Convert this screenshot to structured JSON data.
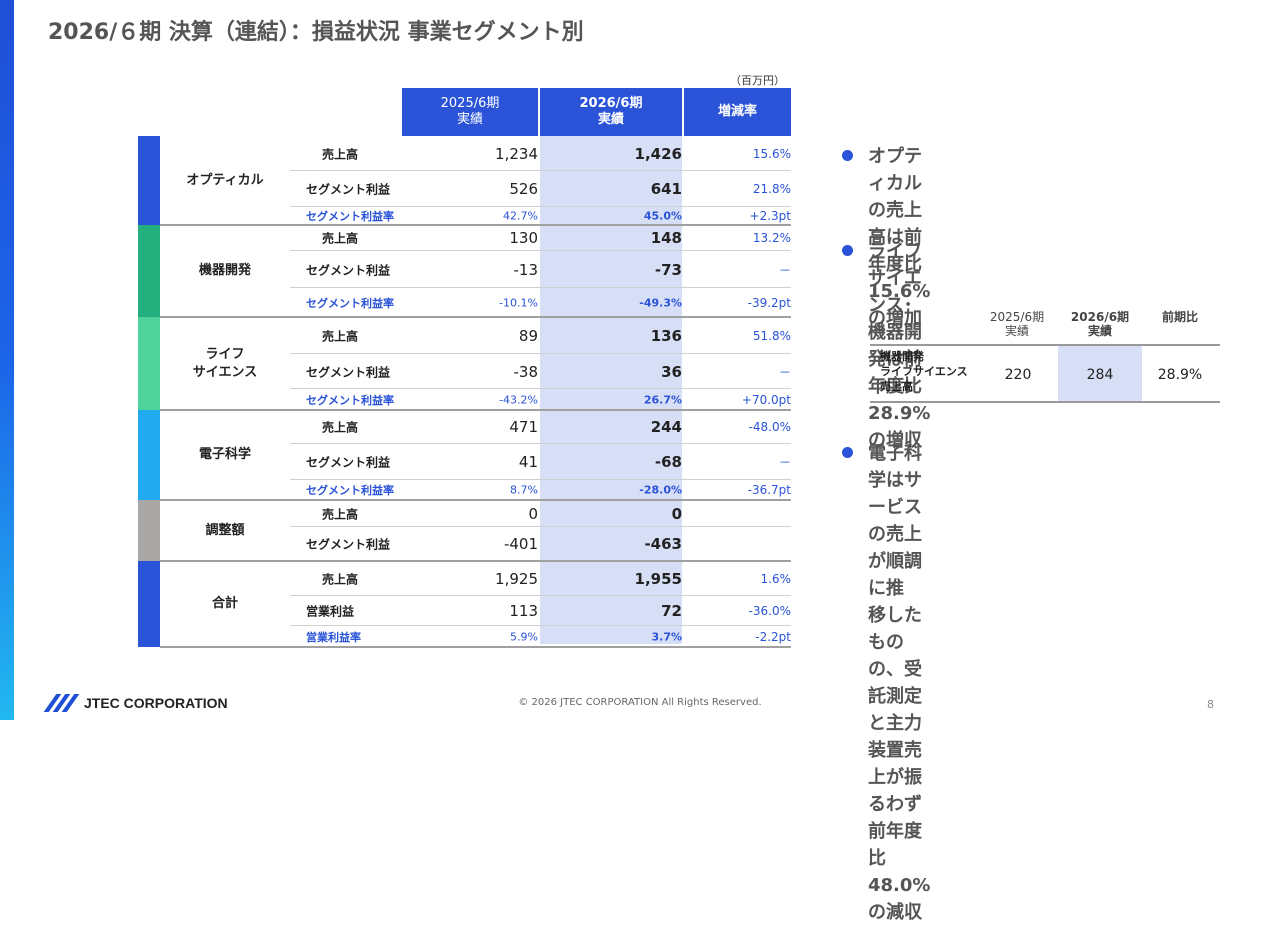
{
  "title": "2026/６期 決算（連結）：損益状況 事業セグメント別",
  "unit": "（百万円）",
  "table": {
    "header": {
      "prev": [
        "2025/6期",
        "実績"
      ],
      "cur": [
        "2026/6期",
        "実績"
      ],
      "change": "増減率"
    },
    "segments": [
      {
        "name": "オプティカル",
        "rows": [
          {
            "label": "売上高",
            "prev": "1,234",
            "cur": "1,426",
            "change": "15.6%"
          },
          {
            "label": "セグメント利益",
            "prev": "526",
            "cur": "641",
            "change": "21.8%"
          },
          {
            "label": "セグメント利益率",
            "prev": "42.7%",
            "cur": "45.0%",
            "change": "+2.3pt"
          }
        ]
      },
      {
        "name": "機器開発",
        "rows": [
          {
            "label": "売上高",
            "prev": "130",
            "cur": "148",
            "change": "13.2%"
          },
          {
            "label": "セグメント利益",
            "prev": "-13",
            "cur": "-73",
            "change": "－"
          },
          {
            "label": "セグメント利益率",
            "prev": "-10.1%",
            "cur": "-49.3%",
            "change": "-39.2pt"
          }
        ]
      },
      {
        "name": "ライフ\nサイエンス",
        "rows": [
          {
            "label": "売上高",
            "prev": "89",
            "cur": "136",
            "change": "51.8%"
          },
          {
            "label": "セグメント利益",
            "prev": "-38",
            "cur": "36",
            "change": "－"
          },
          {
            "label": "セグメント利益率",
            "prev": "-43.2%",
            "cur": "26.7%",
            "change": "+70.0pt"
          }
        ]
      },
      {
        "name": "電子科学",
        "rows": [
          {
            "label": "売上高",
            "prev": "471",
            "cur": "244",
            "change": "-48.0%"
          },
          {
            "label": "セグメント利益",
            "prev": "41",
            "cur": "-68",
            "change": "－"
          },
          {
            "label": "セグメント利益率",
            "prev": "8.7%",
            "cur": "-28.0%",
            "change": "-36.7pt"
          }
        ]
      },
      {
        "name": "調整額",
        "rows": [
          {
            "label": "売上高",
            "prev": "0",
            "cur": "0",
            "change": ""
          },
          {
            "label": "セグメント利益",
            "prev": "-401",
            "cur": "-463",
            "change": ""
          }
        ]
      },
      {
        "name": "合計",
        "rows": [
          {
            "label": "売上高",
            "prev": "1,925",
            "cur": "1,955",
            "change": "1.6%"
          },
          {
            "label": "営業利益",
            "prev": "113",
            "cur": "72",
            "change": "-36.0%"
          },
          {
            "label": "営業利益率",
            "prev": "5.9%",
            "cur": "3.7%",
            "change": "-2.2pt"
          }
        ]
      }
    ]
  },
  "bullets": [
    {
      "text": "オプティカルの売上高は前年度比\n15.6%の増加"
    },
    {
      "text": "ライフサイエンス･機器開発は前年度比\n28.9%の増収"
    },
    {
      "text": "電子科学はサービスの売上が順調に推\n移したものの、受託測定と主力装置売\n上が振るわず前年度比48.0%の減収"
    }
  ],
  "mini_table": {
    "headers": [
      [
        "2025/6期",
        "実績"
      ],
      [
        "2026/6期",
        "実績"
      ],
      [
        "前期比"
      ]
    ],
    "row_label": "機器開発\nライフサイエンス\n売上高",
    "values": [
      "220",
      "284",
      "28.9%"
    ]
  },
  "footer": "© 2026 JTEC CORPORATION All Rights Reserved.",
  "page_number": "8",
  "logo_text": "JTEC CORPORATION",
  "colors": {
    "header_blue": "#2a53d8",
    "highlight": "#d7dff7",
    "segment_bars": [
      "#2a53d8",
      "#24b07e",
      "#4fd39c",
      "#22aaf0",
      "#a9a6a6",
      "#2a53d8"
    ]
  }
}
